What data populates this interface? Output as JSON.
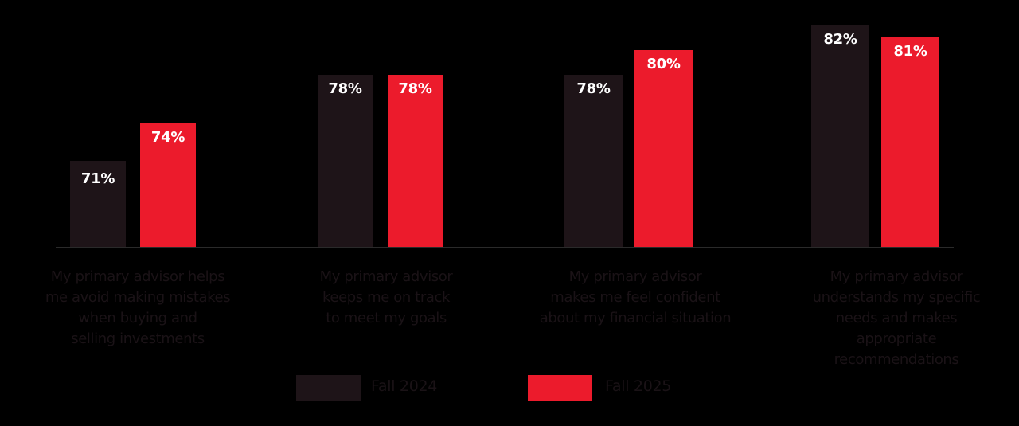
{
  "chart_data": {
    "type": "bar",
    "title": "",
    "xlabel": "",
    "ylabel": "",
    "grid": false,
    "legend_position": "bottom",
    "categories": [
      "My primary advisor helps me avoid making mistakes when buying and selling investments",
      "My primary advisor keeps me on track to meet my goals",
      "My primary advisor makes me feel confident about my financial situation",
      "My primary advisor understands my specific needs and makes appropriate recommendations"
    ],
    "series": [
      {
        "name": "Fall 2024",
        "color": "#1e1418",
        "values": [
          71,
          78,
          78,
          82
        ]
      },
      {
        "name": "Fall 2025",
        "color": "#ec1b2c",
        "values": [
          74,
          78,
          80,
          81
        ]
      }
    ],
    "value_labels": {
      "Fall 2024": [
        "71%",
        "78%",
        "78%",
        "82%"
      ],
      "Fall 2025": [
        "74%",
        "78%",
        "80%",
        "81%"
      ]
    }
  },
  "categories_display": [
    [
      "My primary advisor helps",
      "me avoid making mistakes",
      "when buying and",
      "selling investments"
    ],
    [
      "My primary advisor",
      "keeps me on track",
      "to meet my goals"
    ],
    [
      "My primary advisor",
      "makes me feel confident",
      "about my financial situation"
    ],
    [
      "My primary advisor",
      "understands my specific",
      "needs and makes",
      "appropriate",
      "recommendations"
    ]
  ],
  "legend": [
    {
      "label": "Fall 2024",
      "color": "#1e1418"
    },
    {
      "label": "Fall 2025",
      "color": "#ec1b2c"
    }
  ]
}
